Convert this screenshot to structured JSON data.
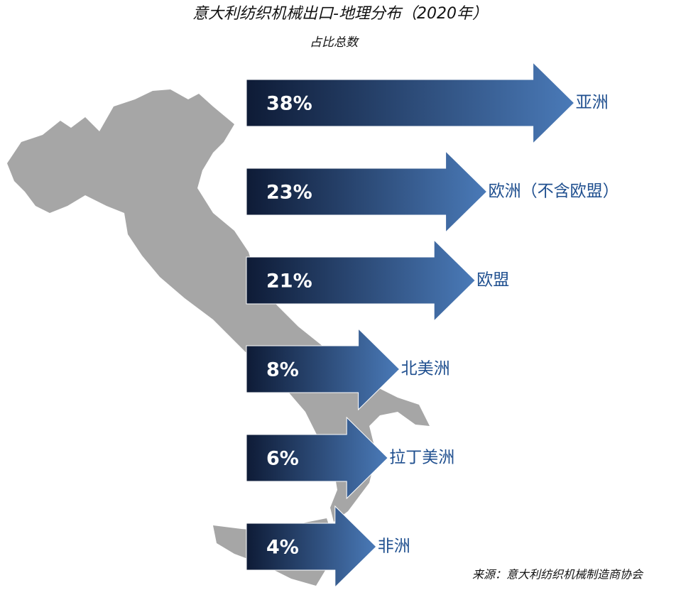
{
  "chart_data": {
    "type": "bar",
    "title": "意大利纺织机械出口-地理分布（2020年）",
    "subtitle": "占比总数",
    "categories": [
      "亚洲",
      "欧洲（不含欧盟）",
      "欧盟",
      "北美洲",
      "拉丁美洲",
      "非洲"
    ],
    "values": [
      38,
      23,
      21,
      8,
      6,
      4
    ],
    "value_labels": [
      "38%",
      "23%",
      "21%",
      "8%",
      "6%",
      "4%"
    ],
    "color": "#4a7ab8",
    "source": "来源：意大利纺织机械制造商协会"
  }
}
